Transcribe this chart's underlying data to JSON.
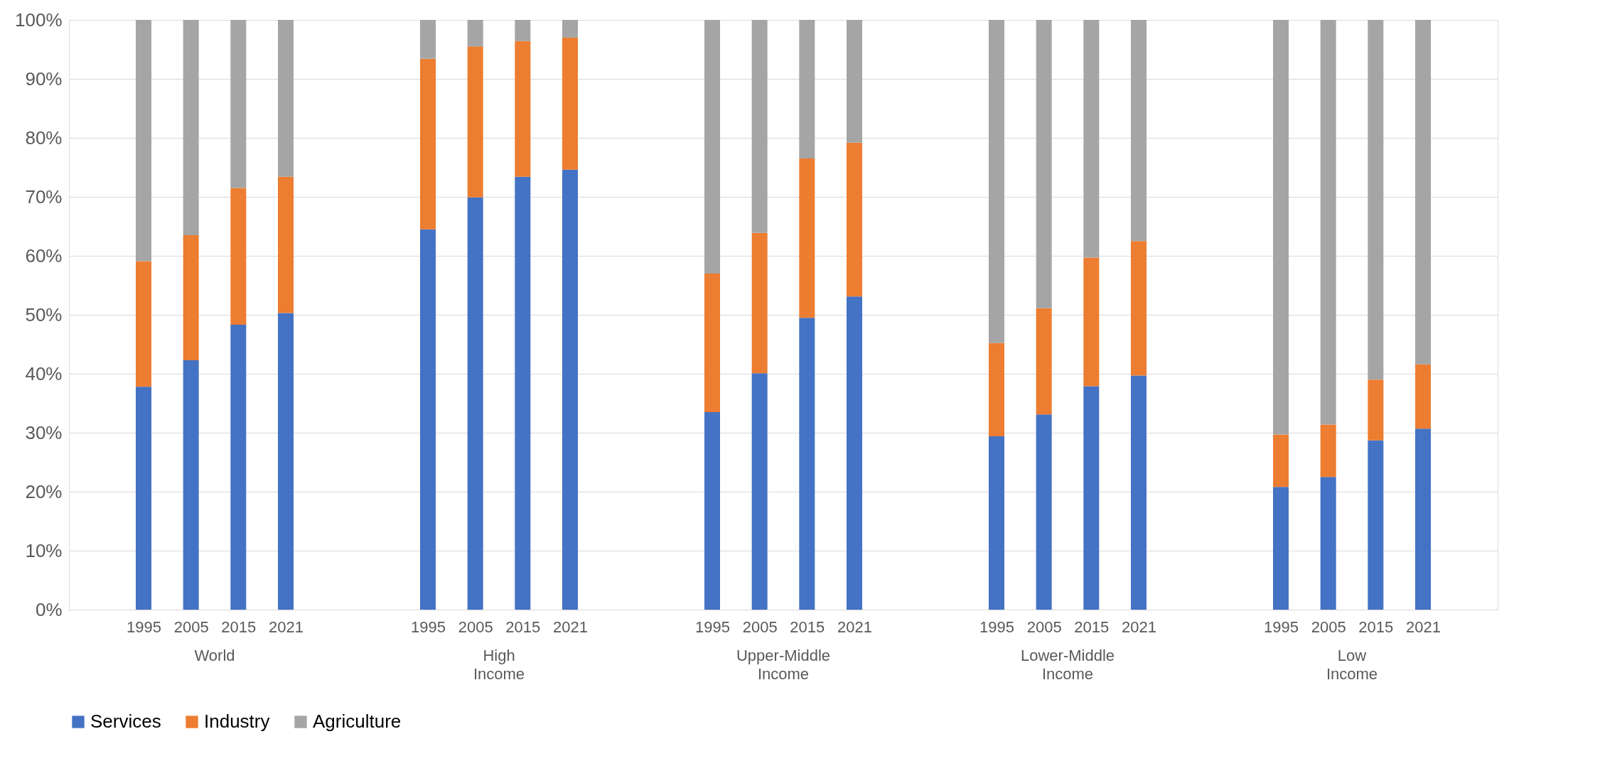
{
  "chart_data": {
    "type": "bar",
    "stacked": true,
    "categories": [
      "1995",
      "2005",
      "2015",
      "2021",
      null,
      null,
      "1995",
      "2005",
      "2015",
      "2021",
      null,
      null,
      "1995",
      "2005",
      "2015",
      "2021",
      null,
      null,
      "1995",
      "2005",
      "2015",
      "2021",
      null,
      null,
      "1995",
      "2005",
      "2015",
      "2021"
    ],
    "series": [
      {
        "name": "Services",
        "color": "#4472c4",
        "values": [
          37.8,
          42.3,
          48.3,
          50.3,
          null,
          null,
          64.5,
          69.9,
          73.4,
          74.6,
          null,
          null,
          33.5,
          40.1,
          49.5,
          53.1,
          null,
          null,
          29.4,
          33.1,
          37.9,
          39.7,
          null,
          null,
          20.8,
          22.5,
          28.7,
          30.7
        ]
      },
      {
        "name": "Industry",
        "color": "#ed7d31",
        "values": [
          21.3,
          21.2,
          23.2,
          23.1,
          null,
          null,
          28.9,
          25.6,
          23.0,
          22.4,
          null,
          null,
          23.5,
          23.8,
          27.0,
          26.1,
          null,
          null,
          15.8,
          18.0,
          21.8,
          22.8,
          null,
          null,
          8.9,
          8.9,
          10.3,
          10.9
        ]
      },
      {
        "name": "Agriculture",
        "color": "#a5a5a5",
        "values": [
          40.9,
          36.5,
          28.5,
          26.6,
          null,
          null,
          6.6,
          4.5,
          3.6,
          3.0,
          null,
          null,
          43.0,
          36.1,
          23.5,
          20.8,
          null,
          null,
          54.8,
          48.9,
          40.3,
          37.5,
          null,
          null,
          70.3,
          68.6,
          61.0,
          58.4
        ]
      }
    ],
    "ylim": [
      0,
      100
    ],
    "yticks": [
      {
        "value": 0,
        "label": "0%"
      },
      {
        "value": 10,
        "label": "10%"
      },
      {
        "value": 20,
        "label": "20%"
      },
      {
        "value": 30,
        "label": "30%"
      },
      {
        "value": 40,
        "label": "40%"
      },
      {
        "value": 50,
        "label": "50%"
      },
      {
        "value": 60,
        "label": "60%"
      },
      {
        "value": 70,
        "label": "70%"
      },
      {
        "value": 80,
        "label": "80%"
      },
      {
        "value": 90,
        "label": "90%"
      },
      {
        "value": 100,
        "label": "100%"
      }
    ],
    "annotations": [
      "World",
      "High Income",
      "Upper-Middle Income",
      "Lower-Middle Income",
      "Low Income"
    ],
    "grid": "y",
    "legend": "bottom"
  }
}
